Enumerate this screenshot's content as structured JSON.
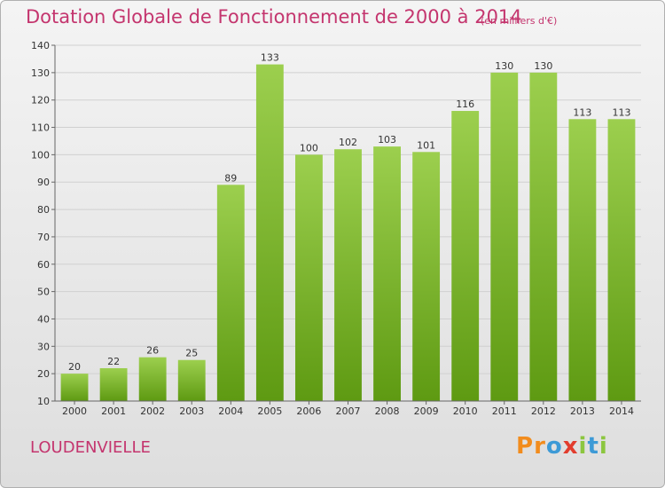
{
  "header": {
    "title": "Dotation Globale de Fonctionnement de 2000 à 2014",
    "unit": "(en milliers d'€)"
  },
  "footer": {
    "place": "LOUDENVIELLE",
    "logo": {
      "letters": [
        "P",
        "r",
        "o",
        "x",
        "i",
        "t",
        "i"
      ],
      "colors": [
        "#f28c1d",
        "#f28c1d",
        "#3d9ad6",
        "#e23d2e",
        "#8cc63f",
        "#3d9ad6",
        "#8cc63f"
      ]
    }
  },
  "chart_data": {
    "type": "bar",
    "title": "Dotation Globale de Fonctionnement de 2000 à 2014",
    "categories": [
      "2000",
      "2001",
      "2002",
      "2003",
      "2004",
      "2005",
      "2006",
      "2007",
      "2008",
      "2009",
      "2010",
      "2011",
      "2012",
      "2013",
      "2014"
    ],
    "values": [
      20,
      22,
      26,
      25,
      89,
      133,
      100,
      102,
      103,
      101,
      116,
      130,
      130,
      113,
      113
    ],
    "value_labels": [
      "20",
      "22",
      "26",
      "25",
      "89",
      "133",
      "100",
      "102",
      "103",
      "101",
      "116",
      "130",
      "130",
      "113",
      "113"
    ],
    "ylim": [
      10,
      140
    ],
    "yticks": [
      "10",
      "20",
      "30",
      "40",
      "50",
      "60",
      "70",
      "80",
      "90",
      "100",
      "110",
      "120",
      "130",
      "140"
    ],
    "grid": true,
    "colors": {
      "bar_top": "#9ccf4e",
      "bar_bottom": "#5e9a12",
      "grid": "#d0d0d0",
      "axis": "#666666"
    }
  }
}
